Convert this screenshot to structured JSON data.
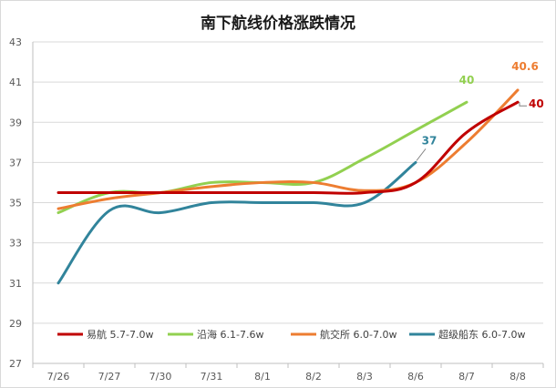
{
  "chart_data": {
    "type": "line",
    "title": "南下航线价格涨跌情况",
    "xlabel": "",
    "ylabel": "",
    "categories": [
      "7/26",
      "7/27",
      "7/30",
      "7/31",
      "8/1",
      "8/2",
      "8/3",
      "8/6",
      "8/7",
      "8/8"
    ],
    "ylim": [
      27,
      43
    ],
    "yticks": [
      27,
      29,
      31,
      33,
      35,
      37,
      39,
      41,
      43
    ],
    "grid": "horizontal",
    "legend_position": "bottom-inside",
    "series": [
      {
        "name": "易航 5.7-7.0w",
        "color": "#c00000",
        "values": [
          35.5,
          35.5,
          35.5,
          35.5,
          35.5,
          35.5,
          35.5,
          36.0,
          38.5,
          40.0
        ],
        "end_label": "40"
      },
      {
        "name": "沿海 6.1-7.6w",
        "color": "#92d050",
        "values": [
          34.5,
          35.5,
          35.5,
          36.0,
          36.0,
          36.0,
          37.2,
          38.6,
          40.0,
          null
        ],
        "end_label": "40"
      },
      {
        "name": "航交所 6.0-7.0w",
        "color": "#ed7d31",
        "values": [
          34.7,
          35.2,
          35.5,
          35.8,
          36.0,
          36.0,
          35.6,
          36.0,
          38.0,
          40.6
        ],
        "end_label": "40.6"
      },
      {
        "name": "超级船东 6.0-7.0w",
        "color": "#31849b",
        "values": [
          31.0,
          34.6,
          34.5,
          35.0,
          35.0,
          35.0,
          35.0,
          37.0,
          null,
          null
        ],
        "end_label": "37"
      }
    ]
  }
}
